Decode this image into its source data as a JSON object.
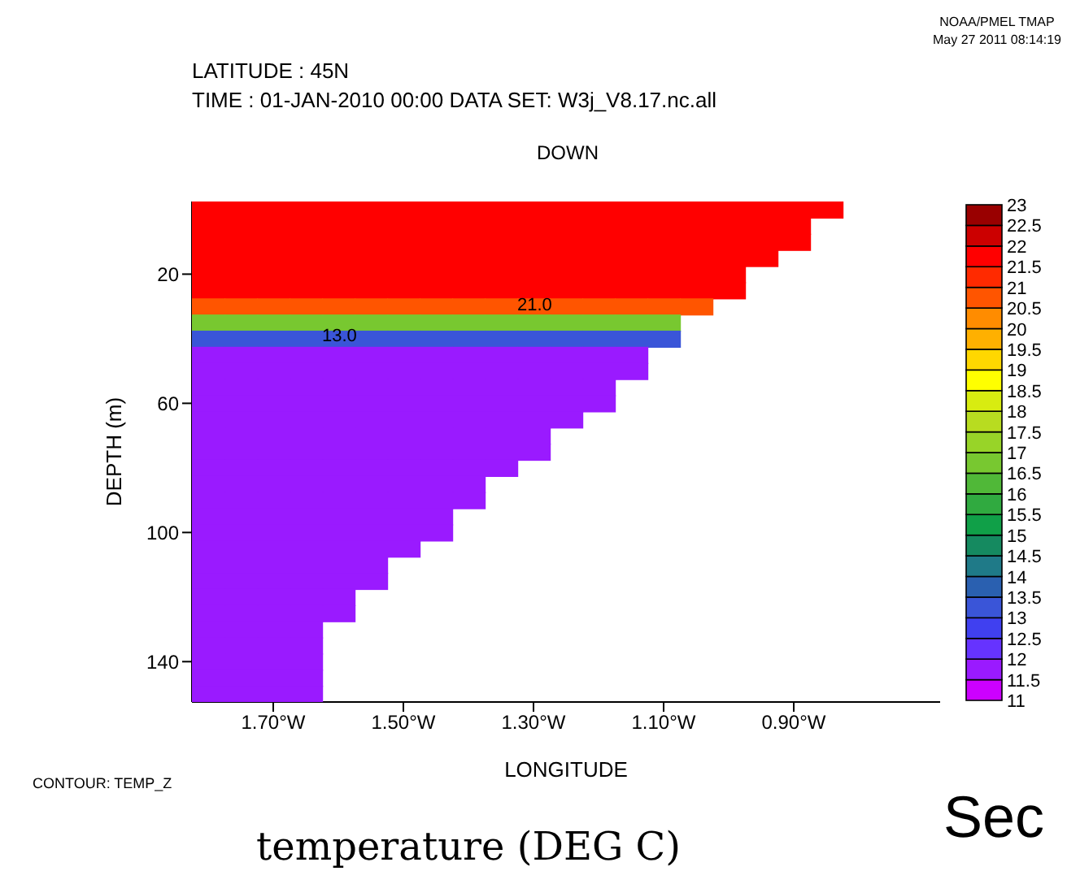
{
  "chart_data": {
    "type": "heatmap",
    "title": "LATITUDE : 45N",
    "subtitle": "TIME : 01-JAN-2010 00:00 DATA SET: W3j_V8.17.nc.all",
    "xlabel": "LONGITUDE",
    "ylabel": "DEPTH (m)",
    "annotations": [
      "DOWN",
      "CONTOUR: TEMP_Z",
      "NOAA/PMEL TMAP",
      "May 27 2011 08:14:19",
      "21.0",
      "13.0",
      "temperature (DEG C)",
      "Sec"
    ],
    "categories": [
      null,
      null,
      "1.70°W",
      null,
      null,
      null,
      "1.50°W",
      null,
      null,
      null,
      "1.30°W",
      null,
      null,
      null,
      "1.10°W",
      null,
      null,
      null,
      "0.90°W",
      null,
      null,
      null,
      null
    ],
    "y_categories": [
      null,
      null,
      null,
      null,
      "20",
      null,
      null,
      null,
      null,
      null,
      null,
      null,
      "60",
      null,
      null,
      null,
      null,
      null,
      null,
      null,
      "100",
      null,
      null,
      null,
      null,
      null,
      null,
      null,
      "140",
      null,
      null
    ],
    "clim": [
      11,
      23
    ],
    "cticks": [
      23,
      22.5,
      22,
      21.5,
      21,
      20.5,
      20,
      19.5,
      19,
      18.5,
      18,
      17.5,
      17,
      16.5,
      16,
      15.5,
      15,
      14.5,
      14,
      13.5,
      13,
      12.5,
      12,
      11.5,
      11
    ],
    "colors": [
      "#cc00ff",
      "#9a1aff",
      "#6633ff",
      "#4040f0",
      "#3a55d8",
      "#2a60b0",
      "#1f7a88",
      "#158a60",
      "#10a048",
      "#30aa40",
      "#50b838",
      "#78c830",
      "#98d428",
      "#b8dc20",
      "#d8ec10",
      "#ffff00",
      "#ffd700",
      "#ffb000",
      "#ff8c00",
      "#ff5500",
      "#ff2a00",
      "#ff0000",
      "#cc0000",
      "#990000"
    ],
    "cells": [
      [
        21.75,
        21.75,
        21.75,
        21.75,
        21.75,
        21.75,
        21.75,
        21.75,
        21.75,
        21.75,
        21.75,
        21.75,
        21.75,
        21.75,
        21.75,
        21.75,
        21.75,
        21.75,
        21.75,
        21.75,
        null,
        null,
        null
      ],
      [
        21.75,
        21.75,
        21.75,
        21.75,
        21.75,
        21.75,
        21.75,
        21.75,
        21.75,
        21.75,
        21.75,
        21.75,
        21.75,
        21.75,
        21.75,
        21.75,
        21.75,
        21.75,
        21.75,
        null,
        null,
        null,
        null
      ],
      [
        21.75,
        21.75,
        21.75,
        21.75,
        21.75,
        21.75,
        21.75,
        21.75,
        21.75,
        21.75,
        21.75,
        21.75,
        21.75,
        21.75,
        21.75,
        21.75,
        21.75,
        21.75,
        21.75,
        null,
        null,
        null,
        null
      ],
      [
        21.75,
        21.75,
        21.75,
        21.75,
        21.75,
        21.75,
        21.75,
        21.75,
        21.75,
        21.75,
        21.75,
        21.75,
        21.75,
        21.75,
        21.75,
        21.75,
        21.75,
        21.75,
        null,
        null,
        null,
        null,
        null
      ],
      [
        21.75,
        21.75,
        21.75,
        21.75,
        21.75,
        21.75,
        21.75,
        21.75,
        21.75,
        21.75,
        21.75,
        21.75,
        21.75,
        21.75,
        21.75,
        21.75,
        21.75,
        null,
        null,
        null,
        null,
        null,
        null
      ],
      [
        21.75,
        21.75,
        21.75,
        21.75,
        21.75,
        21.75,
        21.75,
        21.75,
        21.75,
        21.75,
        21.75,
        21.75,
        21.75,
        21.75,
        21.75,
        21.75,
        21.75,
        null,
        null,
        null,
        null,
        null,
        null
      ],
      [
        20.5,
        20.5,
        20.5,
        20.5,
        20.5,
        20.5,
        20.5,
        20.5,
        20.5,
        20.5,
        20.5,
        20.5,
        20.5,
        20.5,
        20.5,
        20.5,
        null,
        null,
        null,
        null,
        null,
        null,
        null
      ],
      [
        16.5,
        16.5,
        16.5,
        16.5,
        16.5,
        16.5,
        16.5,
        16.5,
        16.5,
        16.5,
        16.5,
        16.5,
        16.5,
        16.5,
        16.5,
        null,
        null,
        null,
        null,
        null,
        null,
        null,
        null
      ],
      [
        13.25,
        13.25,
        13.25,
        13.25,
        13.25,
        13.25,
        13.25,
        13.25,
        13.25,
        13.25,
        13.25,
        13.25,
        13.25,
        13.25,
        13.25,
        null,
        null,
        null,
        null,
        null,
        null,
        null,
        null
      ],
      [
        11.75,
        11.75,
        11.75,
        11.75,
        11.75,
        11.75,
        11.75,
        11.75,
        11.75,
        11.75,
        11.75,
        11.75,
        11.75,
        11.75,
        null,
        null,
        null,
        null,
        null,
        null,
        null,
        null,
        null
      ],
      [
        11.75,
        11.75,
        11.75,
        11.75,
        11.75,
        11.75,
        11.75,
        11.75,
        11.75,
        11.75,
        11.75,
        11.75,
        11.75,
        11.75,
        null,
        null,
        null,
        null,
        null,
        null,
        null,
        null,
        null
      ],
      [
        11.75,
        11.75,
        11.75,
        11.75,
        11.75,
        11.75,
        11.75,
        11.75,
        11.75,
        11.75,
        11.75,
        11.75,
        11.75,
        null,
        null,
        null,
        null,
        null,
        null,
        null,
        null,
        null,
        null
      ],
      [
        11.75,
        11.75,
        11.75,
        11.75,
        11.75,
        11.75,
        11.75,
        11.75,
        11.75,
        11.75,
        11.75,
        11.75,
        11.75,
        null,
        null,
        null,
        null,
        null,
        null,
        null,
        null,
        null,
        null
      ],
      [
        11.75,
        11.75,
        11.75,
        11.75,
        11.75,
        11.75,
        11.75,
        11.75,
        11.75,
        11.75,
        11.75,
        11.75,
        null,
        null,
        null,
        null,
        null,
        null,
        null,
        null,
        null,
        null,
        null
      ],
      [
        11.75,
        11.75,
        11.75,
        11.75,
        11.75,
        11.75,
        11.75,
        11.75,
        11.75,
        11.75,
        11.75,
        null,
        null,
        null,
        null,
        null,
        null,
        null,
        null,
        null,
        null,
        null,
        null
      ],
      [
        11.75,
        11.75,
        11.75,
        11.75,
        11.75,
        11.75,
        11.75,
        11.75,
        11.75,
        11.75,
        11.75,
        null,
        null,
        null,
        null,
        null,
        null,
        null,
        null,
        null,
        null,
        null,
        null
      ],
      [
        11.75,
        11.75,
        11.75,
        11.75,
        11.75,
        11.75,
        11.75,
        11.75,
        11.75,
        11.75,
        null,
        null,
        null,
        null,
        null,
        null,
        null,
        null,
        null,
        null,
        null,
        null,
        null
      ],
      [
        11.75,
        11.75,
        11.75,
        11.75,
        11.75,
        11.75,
        11.75,
        11.75,
        11.75,
        null,
        null,
        null,
        null,
        null,
        null,
        null,
        null,
        null,
        null,
        null,
        null,
        null,
        null
      ],
      [
        11.75,
        11.75,
        11.75,
        11.75,
        11.75,
        11.75,
        11.75,
        11.75,
        11.75,
        null,
        null,
        null,
        null,
        null,
        null,
        null,
        null,
        null,
        null,
        null,
        null,
        null,
        null
      ],
      [
        11.75,
        11.75,
        11.75,
        11.75,
        11.75,
        11.75,
        11.75,
        11.75,
        null,
        null,
        null,
        null,
        null,
        null,
        null,
        null,
        null,
        null,
        null,
        null,
        null,
        null,
        null
      ],
      [
        11.75,
        11.75,
        11.75,
        11.75,
        11.75,
        11.75,
        11.75,
        11.75,
        null,
        null,
        null,
        null,
        null,
        null,
        null,
        null,
        null,
        null,
        null,
        null,
        null,
        null,
        null
      ],
      [
        11.75,
        11.75,
        11.75,
        11.75,
        11.75,
        11.75,
        11.75,
        null,
        null,
        null,
        null,
        null,
        null,
        null,
        null,
        null,
        null,
        null,
        null,
        null,
        null,
        null,
        null
      ],
      [
        11.75,
        11.75,
        11.75,
        11.75,
        11.75,
        11.75,
        null,
        null,
        null,
        null,
        null,
        null,
        null,
        null,
        null,
        null,
        null,
        null,
        null,
        null,
        null,
        null,
        null
      ],
      [
        11.75,
        11.75,
        11.75,
        11.75,
        11.75,
        11.75,
        null,
        null,
        null,
        null,
        null,
        null,
        null,
        null,
        null,
        null,
        null,
        null,
        null,
        null,
        null,
        null,
        null
      ],
      [
        11.75,
        11.75,
        11.75,
        11.75,
        11.75,
        null,
        null,
        null,
        null,
        null,
        null,
        null,
        null,
        null,
        null,
        null,
        null,
        null,
        null,
        null,
        null,
        null,
        null
      ],
      [
        11.75,
        11.75,
        11.75,
        11.75,
        11.75,
        null,
        null,
        null,
        null,
        null,
        null,
        null,
        null,
        null,
        null,
        null,
        null,
        null,
        null,
        null,
        null,
        null,
        null
      ],
      [
        11.75,
        11.75,
        11.75,
        11.75,
        null,
        null,
        null,
        null,
        null,
        null,
        null,
        null,
        null,
        null,
        null,
        null,
        null,
        null,
        null,
        null,
        null,
        null,
        null
      ],
      [
        11.75,
        11.75,
        11.75,
        11.75,
        null,
        null,
        null,
        null,
        null,
        null,
        null,
        null,
        null,
        null,
        null,
        null,
        null,
        null,
        null,
        null,
        null,
        null,
        null
      ],
      [
        11.75,
        11.75,
        11.75,
        11.75,
        null,
        null,
        null,
        null,
        null,
        null,
        null,
        null,
        null,
        null,
        null,
        null,
        null,
        null,
        null,
        null,
        null,
        null,
        null
      ],
      [
        11.75,
        11.75,
        11.75,
        11.75,
        null,
        null,
        null,
        null,
        null,
        null,
        null,
        null,
        null,
        null,
        null,
        null,
        null,
        null,
        null,
        null,
        null,
        null,
        null
      ],
      [
        11.75,
        11.75,
        11.75,
        11.75,
        null,
        null,
        null,
        null,
        null,
        null,
        null,
        null,
        null,
        null,
        null,
        null,
        null,
        null,
        null,
        null,
        null,
        null,
        null
      ]
    ]
  }
}
